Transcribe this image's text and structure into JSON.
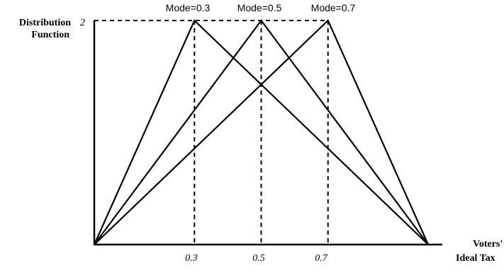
{
  "chart_data": {
    "type": "line",
    "ylabel": [
      "Distribution",
      "Function"
    ],
    "xlabel": [
      "Voters'",
      "Ideal Tax"
    ],
    "xlim": [
      0,
      1
    ],
    "ylim": [
      0,
      2
    ],
    "x_ticks": [
      "0.3",
      "0.5",
      "0.7"
    ],
    "y_ticks": [
      "2"
    ],
    "series": [
      {
        "name": "Mode=0.3",
        "x": [
          0,
          0.3,
          1
        ],
        "y": [
          0,
          2,
          0
        ]
      },
      {
        "name": "Mode=0.5",
        "x": [
          0,
          0.5,
          1
        ],
        "y": [
          0,
          2,
          0
        ]
      },
      {
        "name": "Mode=0.7",
        "x": [
          0,
          0.7,
          1
        ],
        "y": [
          0,
          2,
          0
        ]
      }
    ],
    "grid": false,
    "dashed_guides": true,
    "colors": {
      "line": "#000000",
      "background": "#ffffff"
    }
  }
}
